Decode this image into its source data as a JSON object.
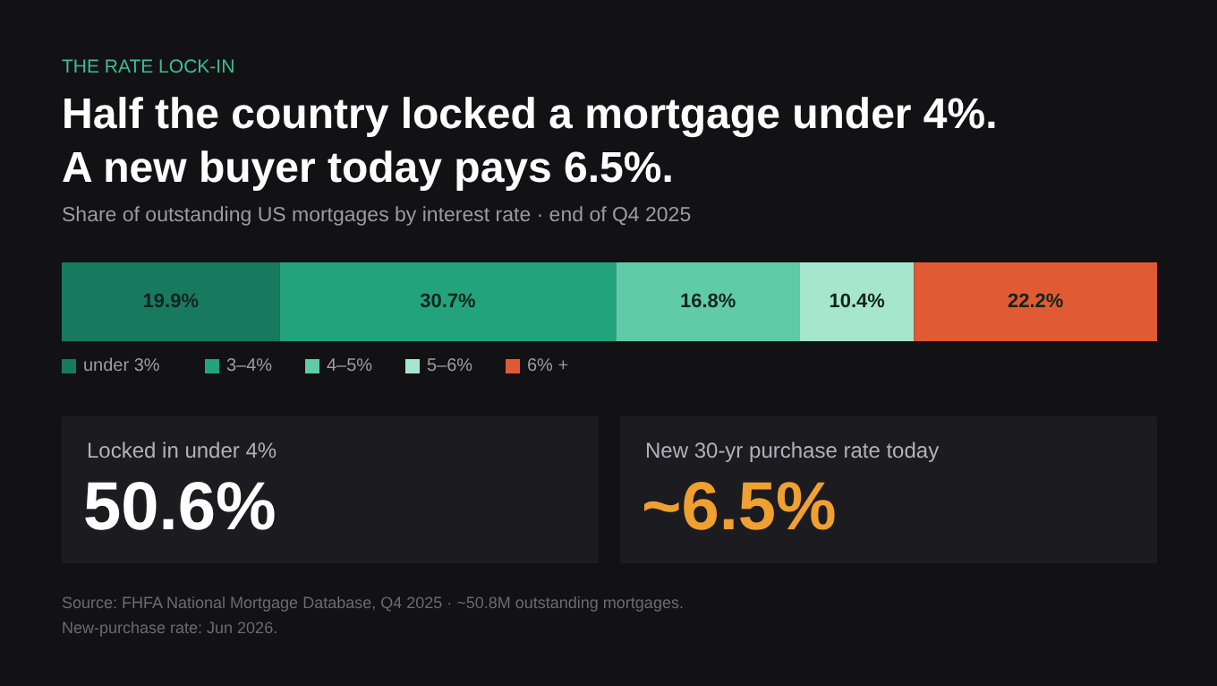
{
  "chart_data": {
    "type": "bar",
    "orientation": "horizontal",
    "stacked": true,
    "title": "Half the country locked a mortgage under 4%.\nA new buyer today pays 6.5%.",
    "subtitle": "Share of outstanding US mortgages by interest rate · end of Q4 2025",
    "categories": [
      null
    ],
    "series": [
      {
        "name": "under 3%",
        "color": "#177a5f",
        "values": [
          19.9
        ],
        "value_labels": [
          "19.9%"
        ]
      },
      {
        "name": "3–4%",
        "color": "#23a37c",
        "values": [
          30.7
        ],
        "value_labels": [
          "30.7%"
        ]
      },
      {
        "name": "4–5%",
        "color": "#5fcca7",
        "values": [
          16.8
        ],
        "value_labels": [
          "16.8%"
        ]
      },
      {
        "name": "5–6%",
        "color": "#a6e6cf",
        "values": [
          10.4
        ],
        "value_labels": [
          "10.4%"
        ]
      },
      {
        "name": "6% +",
        "color": "#e05a33",
        "values": [
          22.2
        ],
        "value_labels": [
          "22.2%"
        ]
      }
    ],
    "xlim": [
      0,
      100
    ],
    "tick_labels": false,
    "grid": false,
    "legend": "bottom",
    "annotations": [
      "THE RATE LOCK-IN",
      "Locked in under 4%",
      "50.6%",
      "New 30-yr purchase rate today",
      "~6.5%",
      "Source: FHFA National Mortgage Database, Q4 2025 · ~50.8M outstanding mortgages.",
      "New-purchase rate: Jun 2026."
    ]
  }
}
